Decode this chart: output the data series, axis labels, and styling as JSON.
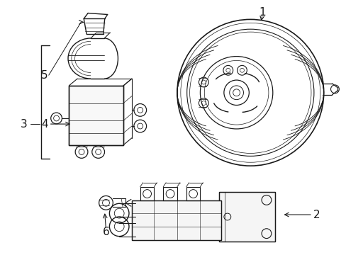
{
  "background_color": "#ffffff",
  "line_color": "#1a1a1a",
  "lw": 0.9,
  "tlw": 0.6,
  "figsize": [
    4.89,
    3.6
  ],
  "dpi": 100,
  "label_fs": 11
}
